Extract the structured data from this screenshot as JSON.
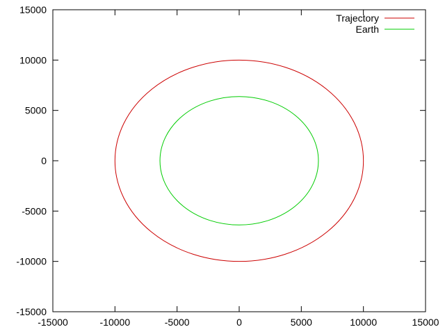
{
  "chart_data": {
    "type": "line",
    "xlim": [
      -15000,
      15000
    ],
    "ylim": [
      -15000,
      15000
    ],
    "x_ticks": [
      -15000,
      -10000,
      -5000,
      0,
      5000,
      10000,
      15000
    ],
    "y_ticks": [
      -15000,
      -10000,
      -5000,
      0,
      5000,
      10000,
      15000
    ],
    "x_tick_labels": [
      "-15000",
      "-10000",
      "-5000",
      "0",
      "5000",
      "10000",
      "15000"
    ],
    "y_tick_labels": [
      "-15000",
      "-10000",
      "-5000",
      "0",
      "5000",
      "10000",
      "15000"
    ],
    "grid": false,
    "legend_position": "top-right",
    "series": [
      {
        "name": "Trajectory",
        "color": "#cc0000",
        "shape": "ellipse",
        "center": [
          0,
          0
        ],
        "radius_x": 10000,
        "radius_y": 10000
      },
      {
        "name": "Earth",
        "color": "#00cc00",
        "shape": "ellipse",
        "center": [
          0,
          0
        ],
        "radius_x": 6378,
        "radius_y": 6378
      }
    ]
  }
}
